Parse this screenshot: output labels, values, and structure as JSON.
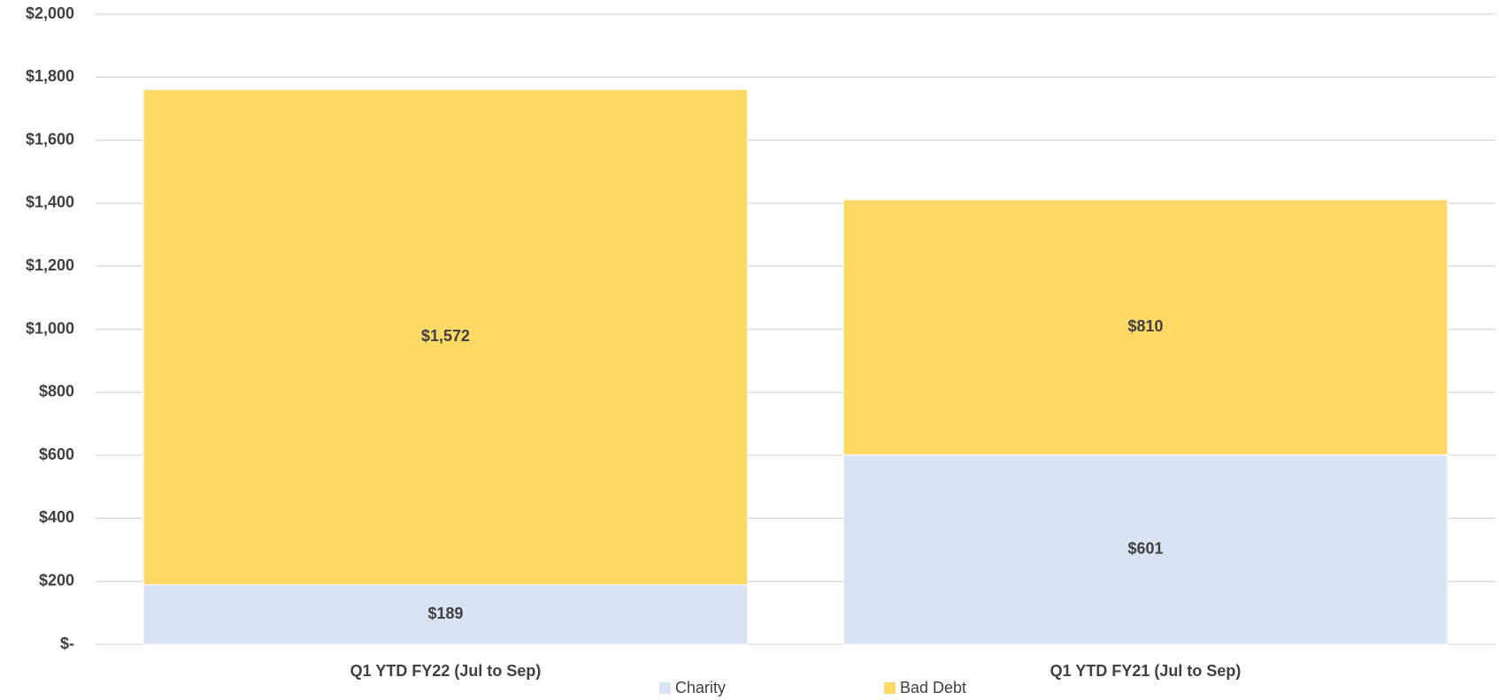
{
  "chart_data": {
    "type": "stacked_bar",
    "categories": [
      "Q1 YTD FY22 (Jul to Sep)",
      "Q1 YTD FY21 (Jul to Sep)"
    ],
    "series": [
      {
        "name": "Charity",
        "color": "#dae3f3",
        "values": [
          189,
          601
        ],
        "value_labels": [
          "$189",
          "$601"
        ]
      },
      {
        "name": "Bad Debt",
        "color": "#ffd966",
        "values": [
          1572,
          810
        ],
        "value_labels": [
          "$1,572",
          "$810"
        ]
      }
    ],
    "ylim": [
      0,
      2000
    ],
    "yticks": [
      {
        "value": 0,
        "label": "$-"
      },
      {
        "value": 200,
        "label": "$200"
      },
      {
        "value": 400,
        "label": "$400"
      },
      {
        "value": 600,
        "label": "$600"
      },
      {
        "value": 800,
        "label": "$800"
      },
      {
        "value": 1000,
        "label": "$1,000"
      },
      {
        "value": 1200,
        "label": "$1,200"
      },
      {
        "value": 1400,
        "label": "$1,400"
      },
      {
        "value": 1600,
        "label": "$1,600"
      },
      {
        "value": 1800,
        "label": "$1,800"
      },
      {
        "value": 2000,
        "label": "$2,000"
      }
    ],
    "grid": true,
    "legend": "bottom"
  }
}
